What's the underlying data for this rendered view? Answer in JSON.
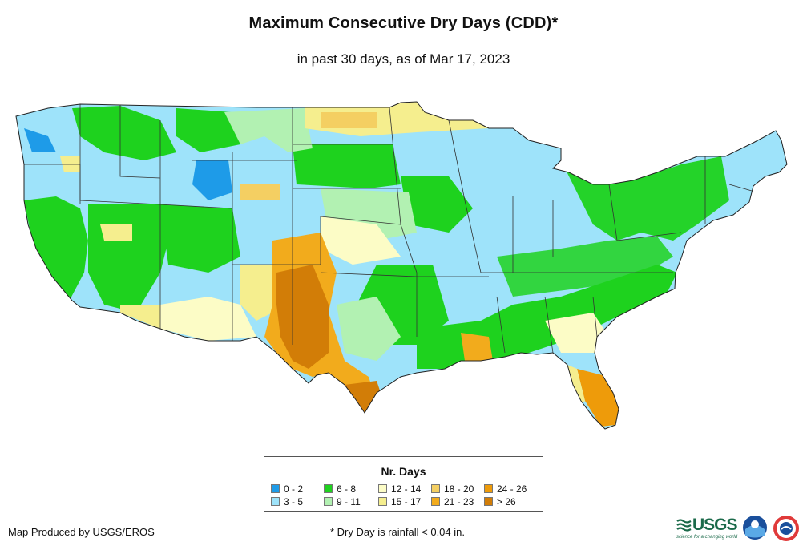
{
  "title": "Maximum Consecutive Dry Days (CDD)*",
  "subtitle": "in past 30 days, as of Mar 17, 2023",
  "legend": {
    "title": "Nr. Days",
    "items": [
      {
        "label": "0 - 2",
        "color": "#1e9be8"
      },
      {
        "label": "3 - 5",
        "color": "#9ee3fa"
      },
      {
        "label": "6 - 8",
        "color": "#1ed21e"
      },
      {
        "label": "9 - 11",
        "color": "#b2f1b2"
      },
      {
        "label": "12 - 14",
        "color": "#fcfcc6"
      },
      {
        "label": "15 - 17",
        "color": "#f5ee8e"
      },
      {
        "label": "18 - 20",
        "color": "#f4cf62"
      },
      {
        "label": "21 - 23",
        "color": "#f2ab1c"
      },
      {
        "label": "24 - 26",
        "color": "#ee9b0a"
      },
      {
        "label": "> 26",
        "color": "#d27d07"
      }
    ]
  },
  "credit": "Map Produced by USGS/EROS",
  "footnote": "* Dry Day is rainfall < 0.04 in.",
  "logos": {
    "usgs": "USGS",
    "usgs_tagline": "science for a changing world",
    "noaa": "noaa",
    "nws": "nws"
  }
}
